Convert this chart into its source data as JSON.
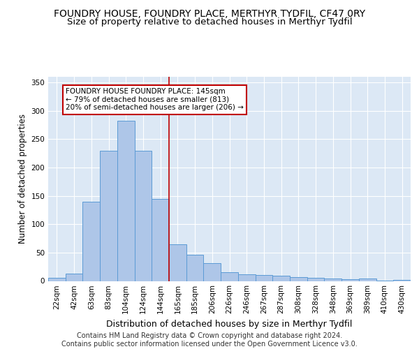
{
  "title1": "FOUNDRY HOUSE, FOUNDRY PLACE, MERTHYR TYDFIL, CF47 0RY",
  "title2": "Size of property relative to detached houses in Merthyr Tydfil",
  "xlabel": "Distribution of detached houses by size in Merthyr Tydfil",
  "ylabel": "Number of detached properties",
  "categories": [
    "22sqm",
    "42sqm",
    "63sqm",
    "83sqm",
    "104sqm",
    "124sqm",
    "144sqm",
    "165sqm",
    "185sqm",
    "206sqm",
    "226sqm",
    "246sqm",
    "267sqm",
    "287sqm",
    "308sqm",
    "328sqm",
    "348sqm",
    "369sqm",
    "389sqm",
    "410sqm",
    "430sqm"
  ],
  "values": [
    5,
    13,
    140,
    230,
    283,
    230,
    145,
    65,
    46,
    32,
    16,
    12,
    10,
    9,
    7,
    5,
    4,
    3,
    4,
    1,
    2
  ],
  "bar_color": "#aec6e8",
  "bar_edge_color": "#5b9bd5",
  "vline_color": "#c00000",
  "vline_x_index": 6.5,
  "annotation_text": "FOUNDRY HOUSE FOUNDRY PLACE: 145sqm\n← 79% of detached houses are smaller (813)\n20% of semi-detached houses are larger (206) →",
  "annotation_box_color": "#ffffff",
  "annotation_box_edge": "#c00000",
  "footer": "Contains HM Land Registry data © Crown copyright and database right 2024.\nContains public sector information licensed under the Open Government Licence v3.0.",
  "ylim": [
    0,
    360
  ],
  "yticks": [
    0,
    50,
    100,
    150,
    200,
    250,
    300,
    350
  ],
  "bg_color": "#dce8f5",
  "title1_fontsize": 10,
  "title2_fontsize": 9.5,
  "xlabel_fontsize": 9,
  "ylabel_fontsize": 8.5,
  "tick_fontsize": 7.5,
  "footer_fontsize": 7,
  "annotation_fontsize": 7.5
}
